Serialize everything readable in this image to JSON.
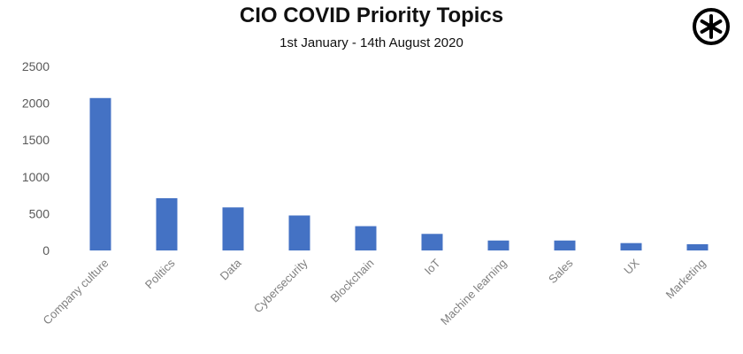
{
  "chart_data": {
    "type": "bar",
    "title": "CIO COVID Priority Topics",
    "subtitle": "1st January - 14th August 2020",
    "categories": [
      "Company culture",
      "Politics",
      "Data",
      "Cybersecurity",
      "Blockchain",
      "IoT",
      "Machine learning",
      "Sales",
      "UX",
      "Marketing"
    ],
    "values": [
      2070,
      710,
      585,
      475,
      330,
      225,
      135,
      135,
      100,
      85
    ],
    "ylim": [
      0,
      2500
    ],
    "yticks": [
      0,
      500,
      1000,
      1500,
      2000,
      2500
    ],
    "bar_color": "#4472c4",
    "grid": false,
    "legend": "none"
  },
  "logo": {
    "icon": "asterisk-circle-logo"
  }
}
